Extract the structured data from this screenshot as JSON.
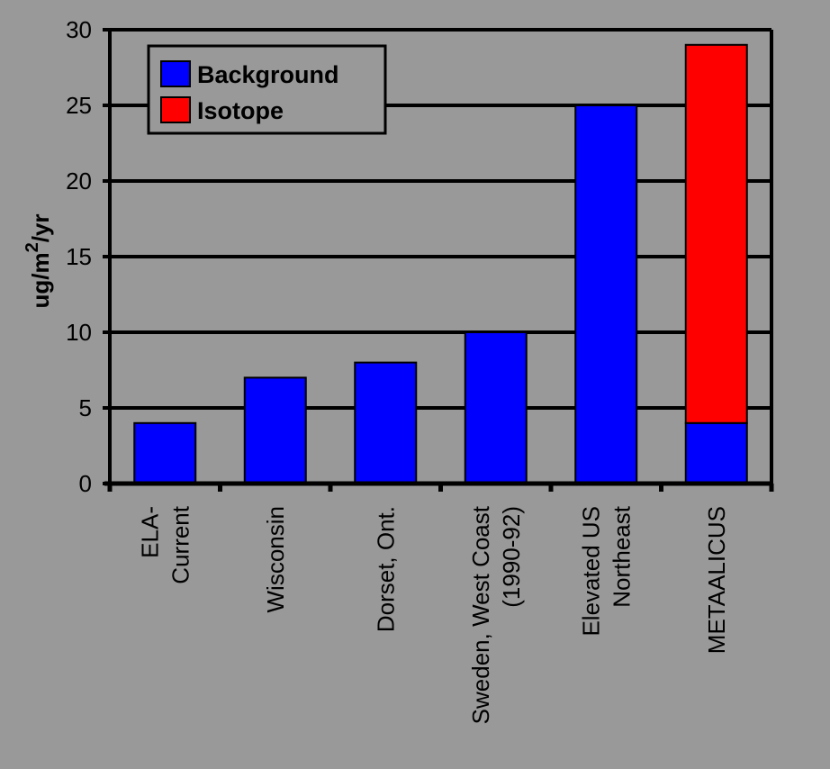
{
  "chart_data": {
    "type": "bar",
    "stacked": true,
    "categories": [
      [
        "ELA-",
        "Current"
      ],
      [
        "Wisconsin"
      ],
      [
        "Dorset, Ont."
      ],
      [
        "Sweden, West Coast",
        "(1990-92)"
      ],
      [
        "Elevated US",
        "Northeast"
      ],
      [
        "METAALICUS"
      ]
    ],
    "series": [
      {
        "name": "Background",
        "color": "#0000ff",
        "values": [
          4,
          7,
          8,
          10,
          25,
          4
        ]
      },
      {
        "name": "Isotope",
        "color": "#ff0000",
        "values": [
          0,
          0,
          0,
          0,
          0,
          25
        ]
      }
    ],
    "ylabel": {
      "base": "ug/m",
      "sup": "2",
      "tail": "/yr"
    },
    "yticks": [
      0,
      5,
      10,
      15,
      20,
      25,
      30
    ],
    "ylim": [
      0,
      30
    ],
    "grid": true,
    "legend_position": "top-left",
    "background_color": "#999999"
  }
}
